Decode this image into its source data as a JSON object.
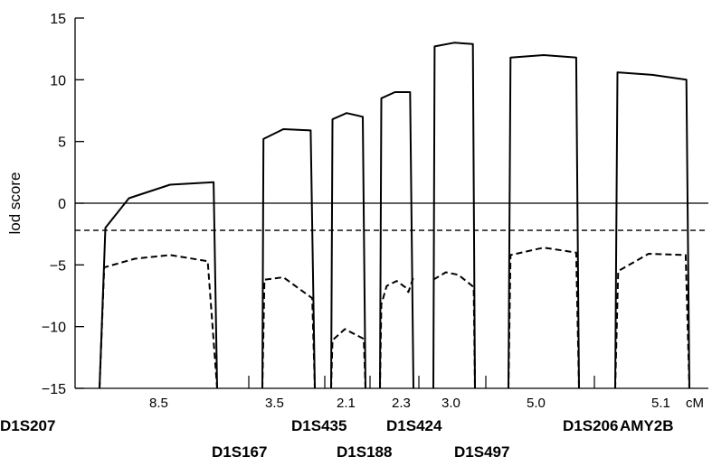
{
  "chart_data": {
    "type": "line",
    "title": "",
    "ylabel": "lod score",
    "xlabel": "",
    "ylim": [
      -15,
      15
    ],
    "yticks": [
      -15,
      -10,
      -5,
      0,
      5,
      10,
      15
    ],
    "reference_lines": [
      {
        "y": 0,
        "style": "solid"
      },
      {
        "y": -2.2,
        "style": "dashed"
      }
    ],
    "distance_unit": "cM",
    "intervals": [
      {
        "distance": "8.5"
      },
      {
        "distance": "3.5"
      },
      {
        "distance": "2.1"
      },
      {
        "distance": "2.3"
      },
      {
        "distance": "3.0"
      },
      {
        "distance": "5.0"
      },
      {
        "distance": "5.1"
      }
    ],
    "markers": [
      {
        "name": "D1S207",
        "row": 1
      },
      {
        "name": "D1S167",
        "row": 2
      },
      {
        "name": "D1S435",
        "row": 1
      },
      {
        "name": "D1S188",
        "row": 2
      },
      {
        "name": "D1S424",
        "row": 1
      },
      {
        "name": "D1S497",
        "row": 2
      },
      {
        "name": "D1S206",
        "row": 1
      },
      {
        "name": "AMY2B",
        "row": 1
      }
    ],
    "series": [
      {
        "style": "solid",
        "segments": [
          [
            [
              -15,
              -15
            ],
            [
              0.05,
              -2
            ],
            [
              0.25,
              0.4
            ],
            [
              0.6,
              1.5
            ],
            [
              0.97,
              1.7
            ],
            [
              1.0,
              -15
            ]
          ],
          [
            [
              -15,
              -15
            ],
            [
              0.02,
              5.2
            ],
            [
              0.4,
              6
            ],
            [
              0.92,
              5.9
            ],
            [
              1.0,
              -15
            ]
          ],
          [
            [
              -15,
              -15
            ],
            [
              0.04,
              6.8
            ],
            [
              0.45,
              7.3
            ],
            [
              0.92,
              7
            ],
            [
              1.0,
              -15
            ]
          ],
          [
            [
              -15,
              -15
            ],
            [
              0.04,
              8.5
            ],
            [
              0.45,
              9
            ],
            [
              0.9,
              9
            ],
            [
              1.0,
              -15
            ]
          ],
          [
            [
              -15,
              -15
            ],
            [
              0.03,
              12.7
            ],
            [
              0.5,
              13
            ],
            [
              0.95,
              12.9
            ],
            [
              1.0,
              -15
            ]
          ],
          [
            [
              -15,
              -15
            ],
            [
              0.03,
              11.8
            ],
            [
              0.5,
              12
            ],
            [
              0.96,
              11.8
            ],
            [
              1.0,
              -15
            ]
          ],
          [
            [
              -15,
              -15
            ],
            [
              0.03,
              10.6
            ],
            [
              0.5,
              10.4
            ],
            [
              0.96,
              10
            ],
            [
              1.0,
              -15
            ]
          ]
        ]
      },
      {
        "style": "dashed",
        "segments": [
          [
            [
              -15,
              -15
            ],
            [
              0.04,
              -5.2
            ],
            [
              0.3,
              -4.5
            ],
            [
              0.6,
              -4.2
            ],
            [
              0.92,
              -4.7
            ],
            [
              1.0,
              -15
            ]
          ],
          [
            [
              -15,
              -15
            ],
            [
              0.04,
              -6.2
            ],
            [
              0.4,
              -6
            ],
            [
              0.95,
              -7.7
            ],
            [
              1.0,
              -15
            ]
          ],
          [
            [
              -15,
              -15
            ],
            [
              0.04,
              -11.1
            ],
            [
              0.4,
              -10.2
            ],
            [
              0.95,
              -11
            ],
            [
              1.0,
              -15
            ]
          ],
          [
            [
              -15,
              -15
            ],
            [
              0.04,
              -8.2
            ],
            [
              0.2,
              -6.7
            ],
            [
              0.5,
              -6.3
            ],
            [
              0.75,
              -6.8
            ],
            [
              0.85,
              -7.2
            ],
            [
              1.0,
              -6
            ]
          ],
          [
            [
              -6.2,
              -6.2
            ],
            [
              0.3,
              -5.6
            ],
            [
              0.6,
              -5.8
            ],
            [
              0.97,
              -6.8
            ],
            [
              1.0,
              -15
            ]
          ],
          [
            [
              -15,
              -15
            ],
            [
              0.03,
              -4.2
            ],
            [
              0.5,
              -3.6
            ],
            [
              0.96,
              -4
            ],
            [
              1.0,
              -15
            ]
          ],
          [
            [
              -15,
              -15
            ],
            [
              0.04,
              -5.5
            ],
            [
              0.45,
              -4.1
            ],
            [
              0.95,
              -4.2
            ],
            [
              1.0,
              -15
            ]
          ]
        ]
      }
    ]
  }
}
